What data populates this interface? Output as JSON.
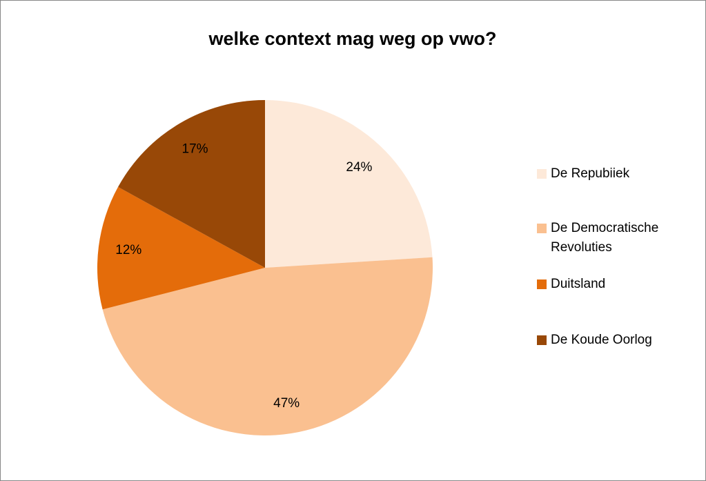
{
  "chart_data": {
    "type": "pie",
    "title": "welke context mag weg op vwo?",
    "categories": [
      "De Repubiiek",
      "De Democratische Revoluties",
      "Duitsland",
      "De Koude Oorlog"
    ],
    "values": [
      24,
      47,
      12,
      17
    ],
    "value_labels": [
      "24%",
      "47%",
      "12%",
      "17%"
    ],
    "colors": [
      "#fde9d9",
      "#fac090",
      "#e46c0a",
      "#984807"
    ],
    "legend": "right"
  }
}
